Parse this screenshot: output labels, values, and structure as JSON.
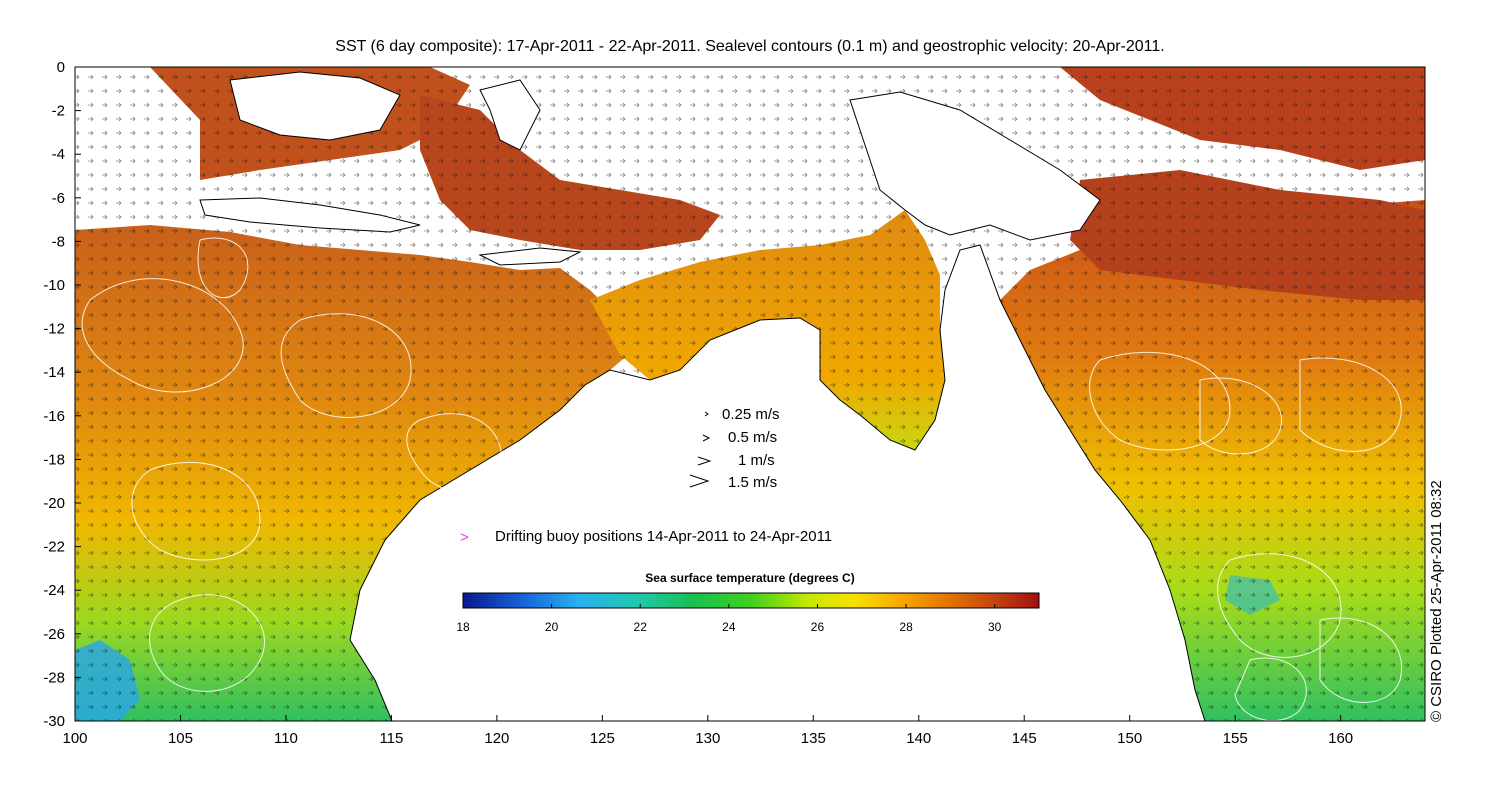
{
  "title": "SST (6 day composite): 17-Apr-2011 - 22-Apr-2011. Sealevel contours (0.1 m) and geostrophic velocity: 20-Apr-2011.",
  "credit": "© CSIRO Plotted 25-Apr-2011 08:32",
  "axes": {
    "x_ticks": [
      "100",
      "105",
      "110",
      "115",
      "120",
      "125",
      "130",
      "135",
      "140",
      "145",
      "150",
      "155",
      "160"
    ],
    "y_ticks": [
      "0",
      "-2",
      "-4",
      "-6",
      "-8",
      "-10",
      "-12",
      "-14",
      "-16",
      "-18",
      "-20",
      "-22",
      "-24",
      "-26",
      "-28",
      "-30"
    ],
    "xlim": [
      100,
      164
    ],
    "ylim": [
      -30,
      0
    ]
  },
  "velocity_legend": [
    {
      "label": "0.25 m/s",
      "speed": 0.25
    },
    {
      "label": "0.5 m/s",
      "speed": 0.5
    },
    {
      "label": "1 m/s",
      "speed": 1
    },
    {
      "label": "1.5 m/s",
      "speed": 1.5
    }
  ],
  "buoy_legend": {
    "label": "Drifting buoy positions 14-Apr-2011 to 24-Apr-2011",
    "marker": ">",
    "color": "#e040e0"
  },
  "colorbar": {
    "title": "Sea surface temperature (degrees C)",
    "ticks": [
      "18",
      "20",
      "22",
      "24",
      "26",
      "28",
      "30"
    ],
    "range": [
      18,
      31
    ],
    "colors": [
      "#0a1a8c",
      "#1560d8",
      "#2ab0f0",
      "#20c8b0",
      "#18c050",
      "#40d020",
      "#c8e800",
      "#f8e000",
      "#f8a800",
      "#e07000",
      "#c04010",
      "#a01010"
    ]
  },
  "colors": {
    "land": "#ffffff",
    "warm_sea": "#d26a18",
    "mid_sea": "#e89010",
    "cool_sea": "#a8dc18",
    "contour": "#ffffff"
  }
}
